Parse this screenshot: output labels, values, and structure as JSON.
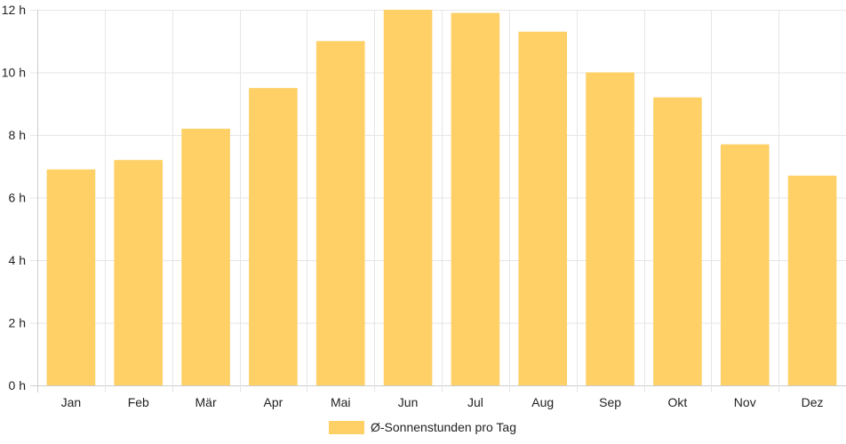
{
  "chart_data": {
    "type": "bar",
    "categories": [
      "Jan",
      "Feb",
      "Mär",
      "Apr",
      "Mai",
      "Jun",
      "Jul",
      "Aug",
      "Sep",
      "Okt",
      "Nov",
      "Dez"
    ],
    "series": [
      {
        "name": "Ø-Sonnenstunden pro Tag",
        "values": [
          6.9,
          7.2,
          8.2,
          9.5,
          11.0,
          12.0,
          11.9,
          11.3,
          10.0,
          9.2,
          7.7,
          6.7
        ],
        "color": "#fed066"
      }
    ],
    "y_ticks": [
      "0 h",
      "2 h",
      "4 h",
      "6 h",
      "8 h",
      "10 h",
      "12 h"
    ],
    "ylim": [
      0,
      12
    ],
    "grid": true,
    "legend_position": "bottom"
  }
}
